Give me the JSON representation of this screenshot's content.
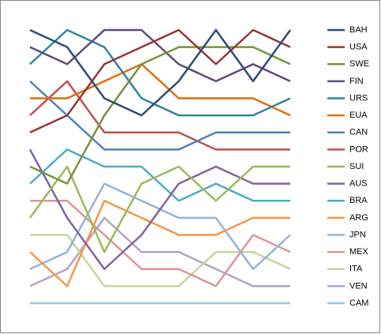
{
  "chart_data": {
    "type": "line",
    "legend": "right",
    "ylim": [
      17,
      1
    ],
    "series": [
      {
        "name": "BAH",
        "color": "#2C4D75",
        "values": [
          1,
          2,
          5,
          6,
          4,
          1,
          4,
          1
        ]
      },
      {
        "name": "USA",
        "color": "#953735",
        "values": [
          7,
          6,
          3,
          2,
          1,
          3,
          1,
          2
        ]
      },
      {
        "name": "SWE",
        "color": "#77933C",
        "values": [
          9,
          10,
          6,
          3,
          2,
          2,
          2,
          3
        ]
      },
      {
        "name": "FIN",
        "color": "#5F497A",
        "values": [
          2,
          3,
          1,
          1,
          3,
          4,
          3,
          4
        ]
      },
      {
        "name": "URS",
        "color": "#31859C",
        "values": [
          3,
          1,
          2,
          5,
          6,
          6,
          6,
          5
        ]
      },
      {
        "name": "EUA",
        "color": "#E46C0A",
        "values": [
          5,
          5,
          4,
          3,
          5,
          5,
          5,
          6
        ]
      },
      {
        "name": "CAN",
        "color": "#4F81BD",
        "values": [
          4,
          6,
          8,
          8,
          8,
          7,
          7,
          7
        ]
      },
      {
        "name": "POR",
        "color": "#C0504D",
        "values": [
          6,
          4,
          7,
          7,
          7,
          8,
          8,
          8
        ]
      },
      {
        "name": "SUI",
        "color": "#9BBB59",
        "values": [
          12,
          9,
          14,
          10,
          9,
          11,
          9,
          9
        ]
      },
      {
        "name": "AUS",
        "color": "#8064A2",
        "values": [
          8,
          12,
          15,
          13,
          10,
          9,
          10,
          10
        ]
      },
      {
        "name": "BRA",
        "color": "#4BACC6",
        "values": [
          10,
          8,
          9,
          9,
          11,
          10,
          11,
          11
        ]
      },
      {
        "name": "ARG",
        "color": "#F79646",
        "values": [
          14,
          16,
          11,
          12,
          13,
          13,
          12,
          12
        ]
      },
      {
        "name": "JPN",
        "color": "#95B3D7",
        "values": [
          15,
          14,
          10,
          11,
          12,
          12,
          15,
          13
        ]
      },
      {
        "name": "MEX",
        "color": "#D99694",
        "values": [
          11,
          11,
          13,
          15,
          15,
          16,
          13,
          14
        ]
      },
      {
        "name": "ITA",
        "color": "#C3D69B",
        "values": [
          13,
          13,
          16,
          16,
          16,
          14,
          14,
          15
        ]
      },
      {
        "name": "VEN",
        "color": "#B3A2C7",
        "values": [
          16,
          15,
          12,
          14,
          14,
          15,
          16,
          16
        ]
      },
      {
        "name": "CAM",
        "color": "#93CDDD",
        "values": [
          17,
          17,
          17,
          17,
          17,
          17,
          17,
          17
        ]
      }
    ]
  }
}
